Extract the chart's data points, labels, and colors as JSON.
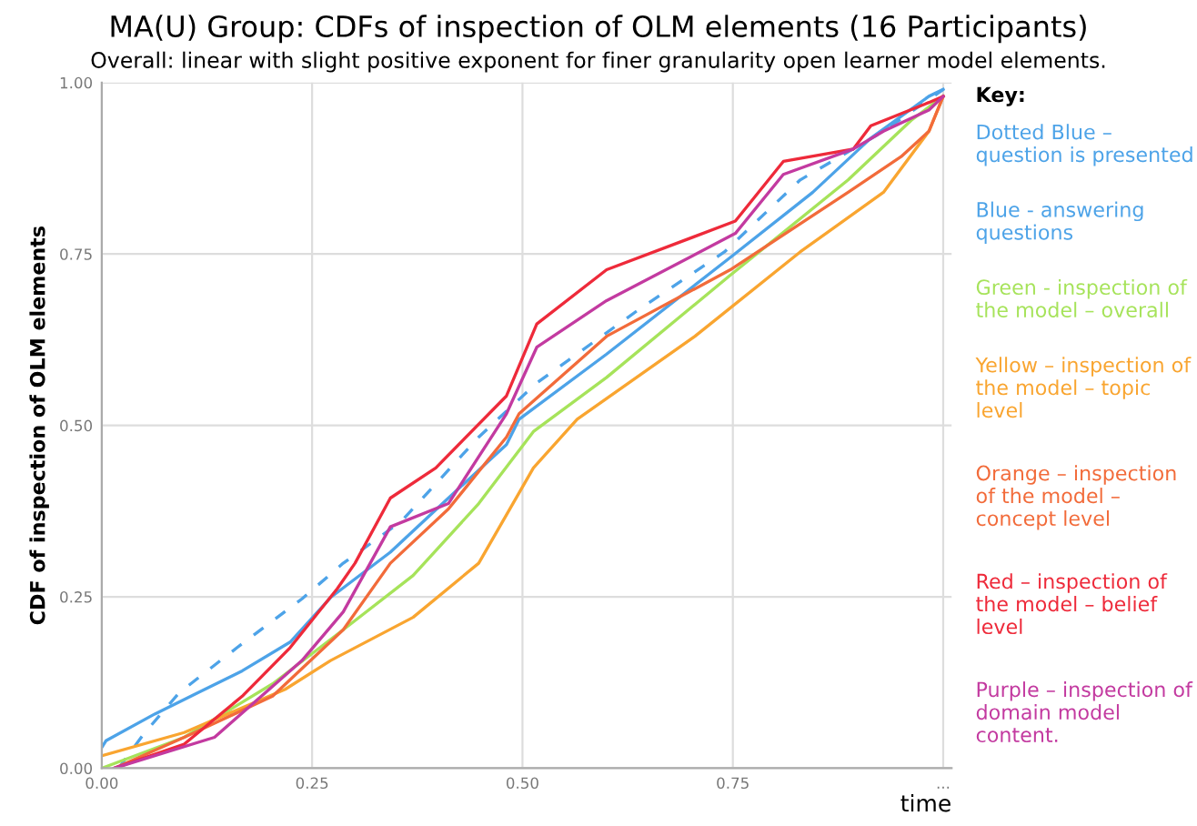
{
  "chart_data": {
    "type": "line",
    "title": "MA(U) Group: CDFs of inspection of OLM elements (16 Participants)",
    "subtitle": "Overall: linear with slight positive exponent for finer granularity open learner model elements.",
    "xlabel": "time",
    "ylabel": "CDF of inspection of OLM elements",
    "legend_title": "Key:",
    "legend": "right",
    "grid": true,
    "marker": "none",
    "xlim": [
      0,
      1.01
    ],
    "ylim": [
      0,
      1.0
    ],
    "xticks": [
      {
        "value": 0,
        "label": "0.00"
      },
      {
        "value": 0.25,
        "label": "0.25"
      },
      {
        "value": 0.5,
        "label": "0.50"
      },
      {
        "value": 0.75,
        "label": "0.75"
      },
      {
        "value": 1.0,
        "label": "..."
      }
    ],
    "yticks": [
      {
        "value": 0,
        "label": "0.00"
      },
      {
        "value": 0.25,
        "label": "0.25"
      },
      {
        "value": 0.5,
        "label": "0.50"
      },
      {
        "value": 0.75,
        "label": "0.75"
      },
      {
        "value": 1.0,
        "label": "1.00"
      }
    ],
    "series": [
      {
        "name": "Dotted Blue – question is presented",
        "color": "#4da3e8",
        "line_style": "dashed",
        "x": [
          0.02,
          0.05,
          0.092,
          0.161,
          0.238,
          0.287,
          0.356,
          0.448,
          0.517,
          0.636,
          0.74,
          0.83,
          0.929,
          1.0
        ],
        "values": [
          0.0,
          0.05,
          0.11,
          0.176,
          0.247,
          0.299,
          0.36,
          0.483,
          0.562,
          0.667,
          0.753,
          0.858,
          0.929,
          0.99
        ]
      },
      {
        "name": "Blue - answering questions",
        "color": "#4da3e8",
        "line_style": "solid",
        "x": [
          0.0,
          0.005,
          0.063,
          0.167,
          0.224,
          0.272,
          0.343,
          0.412,
          0.481,
          0.496,
          0.6,
          0.747,
          0.845,
          0.914,
          0.983,
          1.0
        ],
        "values": [
          0.03,
          0.04,
          0.079,
          0.142,
          0.184,
          0.249,
          0.315,
          0.394,
          0.472,
          0.509,
          0.604,
          0.745,
          0.84,
          0.919,
          0.98,
          0.99
        ]
      },
      {
        "name": "Green - inspection of the model – overall",
        "color": "#a6e35a",
        "line_style": "solid",
        "x": [
          0.0,
          0.098,
          0.203,
          0.287,
          0.37,
          0.448,
          0.513,
          0.6,
          0.747,
          0.887,
          0.962,
          1.0
        ],
        "values": [
          0.0,
          0.045,
          0.123,
          0.202,
          0.281,
          0.386,
          0.491,
          0.57,
          0.719,
          0.858,
          0.945,
          0.98
        ]
      },
      {
        "name": "Yellow – inspection of the model – topic level",
        "color": "#f9a530",
        "line_style": "solid",
        "x": [
          0.0,
          0.098,
          0.218,
          0.272,
          0.37,
          0.448,
          0.513,
          0.565,
          0.705,
          0.83,
          0.929,
          0.983,
          1.0
        ],
        "values": [
          0.018,
          0.052,
          0.115,
          0.157,
          0.22,
          0.299,
          0.438,
          0.509,
          0.63,
          0.753,
          0.84,
          0.929,
          0.98
        ]
      },
      {
        "name": "Orange – inspection of the model – concept level",
        "color": "#f26b3a",
        "line_style": "solid",
        "x": [
          0.015,
          0.098,
          0.203,
          0.287,
          0.343,
          0.412,
          0.481,
          0.496,
          0.6,
          0.747,
          0.887,
          0.95,
          0.983,
          1.0
        ],
        "values": [
          0.0,
          0.045,
          0.105,
          0.202,
          0.299,
          0.378,
          0.483,
          0.517,
          0.63,
          0.727,
          0.84,
          0.892,
          0.929,
          0.98
        ]
      },
      {
        "name": "Red – inspection of the model – belief level",
        "color": "#ee2a3a",
        "line_style": "solid",
        "x": [
          0.015,
          0.098,
          0.167,
          0.224,
          0.28,
          0.301,
          0.343,
          0.397,
          0.481,
          0.517,
          0.6,
          0.753,
          0.81,
          0.893,
          0.914,
          0.983,
          1.0
        ],
        "values": [
          0.0,
          0.035,
          0.105,
          0.176,
          0.262,
          0.299,
          0.394,
          0.438,
          0.543,
          0.648,
          0.727,
          0.798,
          0.885,
          0.903,
          0.937,
          0.971,
          0.98
        ]
      },
      {
        "name": "Purple – inspection of domain model content.",
        "color": "#c33aa0",
        "line_style": "solid",
        "x": [
          0.015,
          0.134,
          0.238,
          0.287,
          0.343,
          0.412,
          0.481,
          0.517,
          0.6,
          0.753,
          0.81,
          0.893,
          0.929,
          0.983,
          1.0
        ],
        "values": [
          0.0,
          0.045,
          0.157,
          0.228,
          0.352,
          0.386,
          0.517,
          0.614,
          0.682,
          0.78,
          0.866,
          0.903,
          0.929,
          0.96,
          0.98
        ]
      }
    ]
  }
}
